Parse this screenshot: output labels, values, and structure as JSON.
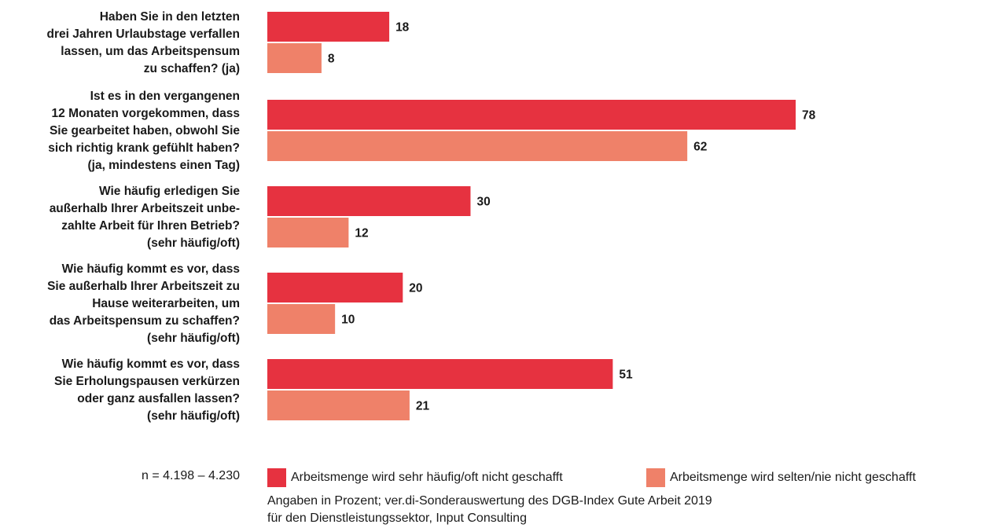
{
  "chart_data": {
    "type": "bar",
    "orientation": "horizontal",
    "categories": [
      [
        "Haben Sie in den letzten",
        "drei Jahren Urlaubstage verfallen",
        "lassen, um das Arbeitspensum",
        "zu schaffen? (ja)"
      ],
      [
        "Ist es in den vergangenen",
        "12 Monaten vorgekommen, dass",
        "Sie gearbeitet haben, obwohl Sie",
        "sich richtig krank gefühlt haben?",
        "(ja, mindestens einen Tag)"
      ],
      [
        "Wie häufig erledigen Sie",
        "außerhalb Ihrer Arbeitszeit unbe-",
        "zahlte Arbeit für Ihren Betrieb?",
        "(sehr häufig/oft)"
      ],
      [
        "Wie häufig kommt es vor, dass",
        "Sie außerhalb Ihrer Arbeitszeit zu",
        "Hause weiterarbeiten, um",
        "das Arbeitspensum zu schaffen?",
        "(sehr häufig/oft)"
      ],
      [
        "Wie häufig kommt es vor, dass",
        "Sie Erholungspausen verkürzen",
        "oder ganz ausfallen lassen?",
        "(sehr häufig/oft)"
      ]
    ],
    "series": [
      {
        "name": "Arbeitsmenge wird sehr häufig/oft nicht geschafft",
        "color": "#e63240",
        "values": [
          18,
          78,
          30,
          20,
          51
        ]
      },
      {
        "name": "Arbeitsmenge wird selten/nie nicht geschafft",
        "color": "#ef8169",
        "values": [
          8,
          62,
          12,
          10,
          21
        ]
      }
    ],
    "xlim": [
      0,
      100
    ],
    "grid": false,
    "legend_position": "bottom"
  },
  "footer": {
    "sample_size": "n = 4.198 – 4.230",
    "note_line1": "Angaben in Prozent; ver.di-Sonderauswertung des DGB-Index Gute Arbeit 2019",
    "note_line2": "für den Dienstleistungssektor, Input Consulting"
  }
}
